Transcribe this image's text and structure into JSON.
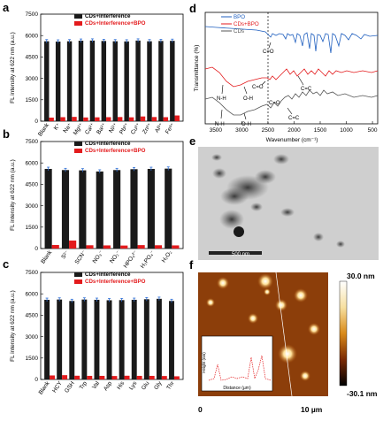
{
  "panel_labels": {
    "a": "a",
    "b": "b",
    "c": "c",
    "d": "d",
    "e": "e",
    "f": "f"
  },
  "colors": {
    "black_series": "#1a1a1a",
    "red_series": "#e31a1c",
    "error_bar": "#2e6fd6",
    "bpo_line": "#1f5fbf",
    "cds_bpo_line": "#e31a1c",
    "cds_line": "#555555"
  },
  "chart_data": [
    {
      "panel": "a",
      "type": "bar",
      "ylabel": "FL intensity at 622 nm (a.u.)",
      "ylim": [
        0,
        7500
      ],
      "yticks": [
        "0",
        "1500",
        "3000",
        "4500",
        "6000",
        "7500"
      ],
      "categories": [
        "Blank",
        "K⁺",
        "Na⁺",
        "Mg²⁺",
        "Ca²⁺",
        "Ba²⁺",
        "Ni²⁺",
        "Pb²⁺",
        "Cu²⁺",
        "Zn²⁺",
        "Al³⁺",
        "Fe³⁺"
      ],
      "series": [
        {
          "name": "CDs+Interference",
          "values": [
            5600,
            5580,
            5600,
            5640,
            5650,
            5620,
            5600,
            5590,
            5650,
            5600,
            5620,
            5630
          ]
        },
        {
          "name": "CDs+Interference+BPO",
          "values": [
            250,
            280,
            300,
            260,
            270,
            280,
            290,
            270,
            330,
            290,
            280,
            400
          ]
        }
      ]
    },
    {
      "panel": "b",
      "type": "bar",
      "ylabel": "FL intensity at 622 nm (a.u.)",
      "ylim": [
        0,
        7500
      ],
      "yticks": [
        "0",
        "1500",
        "3000",
        "4500",
        "6000",
        "7500"
      ],
      "categories": [
        "Blank",
        "S²⁻",
        "SCN⁻",
        "NO₃⁻",
        "NO₂⁻",
        "HPO₄²⁻",
        "H₂PO₄⁻",
        "H₂O₂"
      ],
      "series": [
        {
          "name": "CDs+Interference",
          "values": [
            5580,
            5500,
            5480,
            5400,
            5500,
            5560,
            5580,
            5600
          ]
        },
        {
          "name": "CDs+Interference+BPO",
          "values": [
            250,
            560,
            230,
            220,
            210,
            240,
            230,
            220
          ]
        }
      ]
    },
    {
      "panel": "c",
      "type": "bar",
      "ylabel": "FL intensity at 622 nm (a.u.)",
      "ylim": [
        0,
        7500
      ],
      "yticks": [
        "0",
        "1500",
        "3000",
        "4500",
        "6000",
        "7500"
      ],
      "categories": [
        "Blank",
        "HCY",
        "GSH",
        "Trp",
        "Val",
        "Asp",
        "His",
        "Lys",
        "Glu",
        "Gly",
        "Thr"
      ],
      "series": [
        {
          "name": "CDs+Interference",
          "values": [
            5580,
            5600,
            5500,
            5600,
            5580,
            5550,
            5560,
            5580,
            5620,
            5650,
            5500
          ]
        },
        {
          "name": "CDs+Interference+BPO",
          "values": [
            280,
            300,
            260,
            250,
            250,
            240,
            260,
            250,
            250,
            240,
            220
          ]
        }
      ]
    },
    {
      "panel": "d",
      "type": "line",
      "xlabel": "Wavenumber (cm⁻¹)",
      "ylabel": "Transmittance (%)",
      "xlim": [
        3700,
        400
      ],
      "xticks": [
        "3500",
        "3000",
        "2500",
        "2000",
        "1500",
        "1000",
        "500"
      ],
      "legend": [
        "BPO",
        "CDs+BPO",
        "CDs"
      ],
      "legend_position": "top",
      "annotations": [
        "C=O",
        "C=O",
        "C=C",
        "C=C",
        "N-H",
        "O-H",
        "N-H",
        "O-H",
        "C=O"
      ]
    }
  ],
  "panel_e": {
    "scalebar": "500 nm"
  },
  "panel_f": {
    "colorbar_max": "30.0 nm",
    "colorbar_min": "-30.1 nm",
    "x_start": "0",
    "x_end": "10 µm",
    "inset_xlabel": "Distance (µm)",
    "inset_ylabel": "Height (nm)"
  }
}
